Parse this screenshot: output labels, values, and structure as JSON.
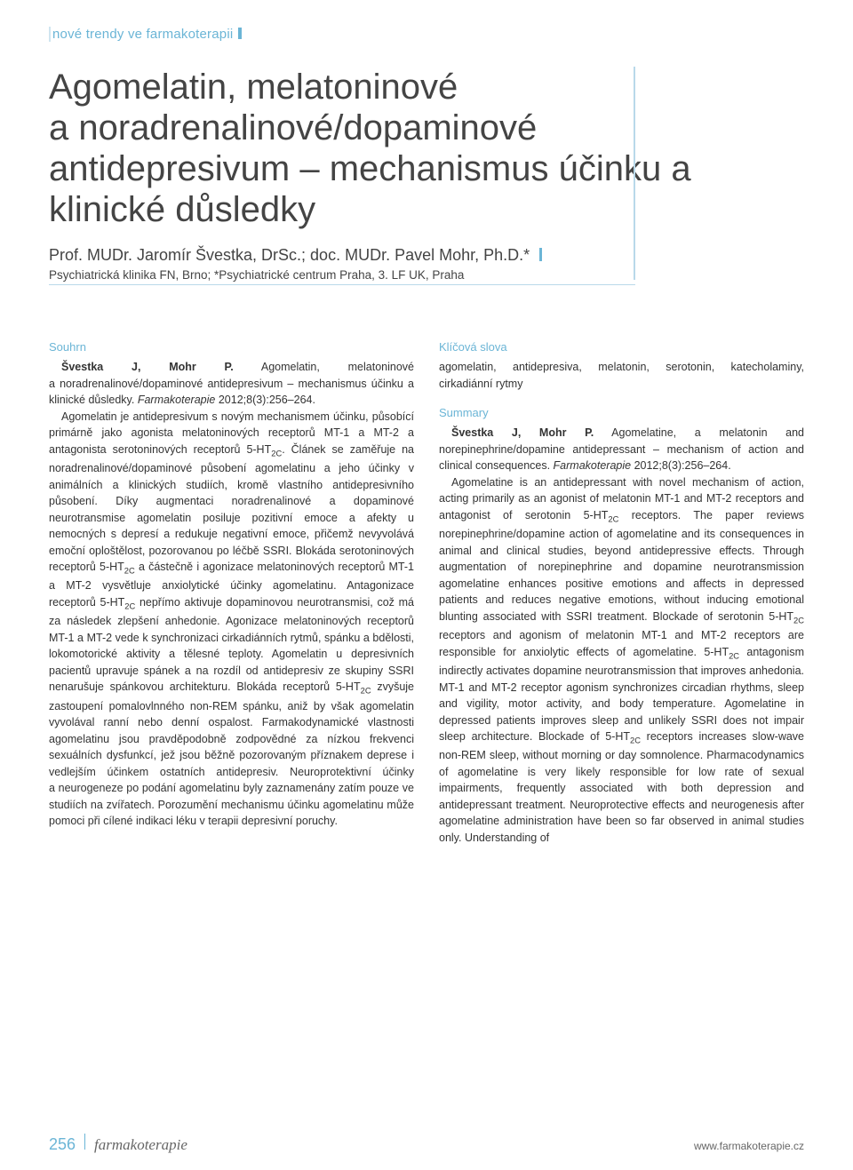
{
  "section_label": "nové trendy ve farmakoterapii",
  "title": "Agomelatin, melatoninové a noradrenalinové/dopaminové antidepresivum – mechanismus účinku a klinické důsledky",
  "authors": "Prof. MUDr. Jaromír Švestka, DrSc.; doc. MUDr. Pavel Mohr, Ph.D.*",
  "affiliation": "Psychiatrická klinika FN, Brno; *Psychiatrické centrum Praha, 3. LF UK, Praha",
  "left": {
    "souhrn_label": "Souhrn",
    "p1_lead": "Švestka J, Mohr P.",
    "p1": " Agomelatin, melatoninové a noradrenalinové/dopaminové antidepresivum – mechanismus účinku a klinické důsledky. ",
    "p1_journal": "Farmakoterapie",
    "p1_cite": " 2012;8(3):256–264.",
    "p2": "Agomelatin je antidepresivum s novým mechanismem účinku, působící primárně jako agonista melatoninových receptorů MT-1 a MT-2 a antagonista serotoninových receptorů 5-HT",
    "p2b": ". Článek se zaměřuje na noradrenalinové/dopaminové působení agomelatinu a jeho účinky v animálních a klinických studiích, kromě vlastního antidepresivního působení. Díky augmentaci noradrenalinové a dopaminové neurotransmise agomelatin posiluje pozitivní emoce a afekty u nemocných s depresí a redukuje negativní emoce, přičemž nevyvolává emoční oploštělost, pozorovanou po léčbě SSRI. Blokáda serotoninových receptorů 5-HT",
    "p2c": " a částečně i agonizace melatoninových receptorů MT-1 a MT-2 vysvětluje anxiolytické účinky agomelatinu. Antagonizace receptorů 5-HT",
    "p2d": " nepřímo aktivuje dopaminovou neurotransmisi, což má za následek zlepšení anhedonie. Agonizace melatoninových receptorů MT-1 a MT-2 vede k synchronizaci cirkadiánních rytmů, spánku a bdělosti, lokomotorické aktivity a tělesné teploty. Agomelatin u depresivních pacientů upravuje spánek a na rozdíl od antidepresiv ze skupiny SSRI nenarušuje spánkovou architekturu. Blokáda receptorů 5-HT",
    "p2e": " zvyšuje zastoupení pomalovlnného non-REM spánku, aniž by však agomelatin vyvolával ranní nebo denní ospalost. Farmakodynamické vlastnosti agomelatinu jsou pravděpodobně zodpovědné za nízkou frekvenci sexuálních dysfunkcí, jež jsou běžně pozorovaným příznakem deprese i vedlejším účinkem ostatních antidepresiv. Neuroprotektivní účinky a neurogeneze po podání agomelatinu byly zaznamenány zatím pouze ve studiích na zvířatech. Porozumění mechanismu účinku agomelatinu může pomoci při cílené indikaci léku v terapii depresivní poruchy."
  },
  "right": {
    "klicova_label": "Klíčová slova",
    "keywords": "agomelatin, antidepresiva, melatonin, serotonin, katecholaminy, cirkadiánní rytmy",
    "summary_label": "Summary",
    "s1_lead": "Švestka J, Mohr P.",
    "s1": " Agomelatine, a melatonin and norepinephrine/dopamine antidepressant – mechanism of action and clinical consequences. ",
    "s1_journal": "Farmakoterapie",
    "s1_cite": " 2012;8(3):256–264.",
    "s2a": "Agomelatine is an antidepressant with novel mechanism of action, acting primarily as an agonist of melatonin MT-1 and MT-2 receptors and antagonist of serotonin 5-HT",
    "s2b": " receptors. The paper reviews norepinephrine/dopamine action of agomelatine and its consequences in animal and clinical studies, beyond antidepressive effects. Through augmentation of norepinephrine and dopamine neurotransmission agomelatine enhances positive emotions and affects in depressed patients and reduces negative emotions, without inducing emotional blunting associated with SSRI treatment. Blockade of serotonin 5-HT",
    "s2c": " receptors and agonism of melatonin MT-1 and MT-2 receptors are responsible for anxiolytic effects of agomelatine. 5-HT",
    "s2d": " antagonism indirectly activates dopamine neurotransmission that improves anhedonia. MT-1 and MT-2 receptor agonism synchronizes circadian rhythms, sleep and vigility, motor activity, and body temperature. Agomelatine in depressed patients improves sleep and unlikely SSRI does not impair sleep architecture. Blockade of 5-HT",
    "s2e": " receptors increases slow-wave non-REM sleep, without morning or day somnolence. Pharmacodynamics of agomelatine is very likely responsible for low rate of sexual impairments, frequently associated with both depression and antidepressant treatment. Neuroprotective effects and neurogenesis after agomelatine administration have been so far observed in animal studies only. Understanding of"
  },
  "sub_2c": "2C",
  "footer": {
    "page": "256",
    "journal": "farmakoterapie",
    "url": "www.farmakoterapie.cz"
  }
}
